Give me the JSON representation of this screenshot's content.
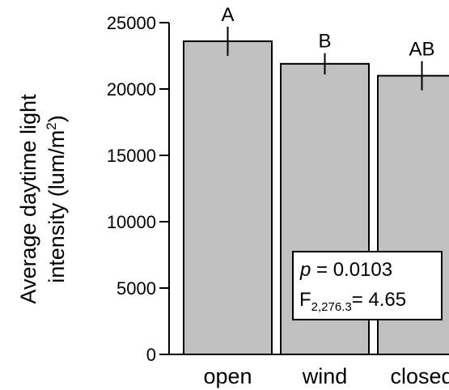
{
  "chart_data": {
    "type": "bar",
    "categories": [
      "open",
      "wind",
      "closed"
    ],
    "values": [
      23600,
      21900,
      21000
    ],
    "errors": [
      1100,
      800,
      1100
    ],
    "significance": [
      "A",
      "B",
      "AB"
    ],
    "title": "",
    "xlabel": "",
    "ylabel_line1": "Average daytime light",
    "ylabel_line2_prefix": "intensity (lum/m",
    "ylabel_line2_sup": "2",
    "ylabel_line2_suffix": ")",
    "ylim": [
      0,
      25000
    ],
    "yticks": [
      0,
      5000,
      10000,
      15000,
      20000,
      25000
    ],
    "ytick_labels": [
      "0",
      "5000",
      "10000",
      "15000",
      "20000",
      "25000"
    ],
    "grid": false,
    "bar_color": "#c0c0c0",
    "edge_color": "#000000",
    "annotation": {
      "p_label": "p",
      "p_value": " = 0.0103",
      "f_label": "F",
      "f_sub": "2,276.3",
      "f_value": "= 4.65"
    }
  }
}
